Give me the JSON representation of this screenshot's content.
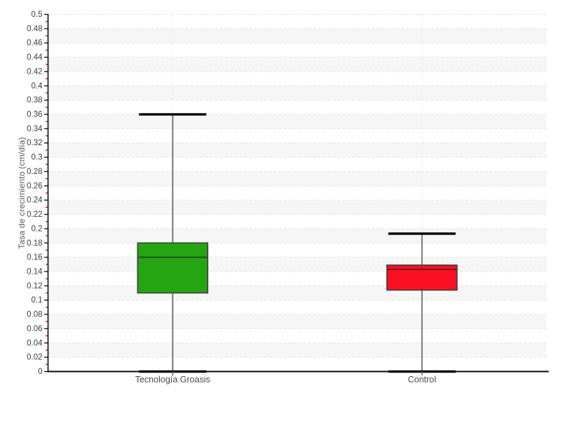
{
  "chart_data": {
    "type": "box",
    "title": "",
    "xlabel": "",
    "ylabel": "Tasa de crecimiento (cm/día)",
    "ylim": [
      0,
      0.5
    ],
    "ytick_step": 0.02,
    "minor_tick_step": 0.01,
    "grid": "horizontal dashed gridlines with alternating shaded bands; vertical dashed line at each category",
    "legend": "none",
    "categories": [
      "Tecnología Groasis",
      "Control"
    ],
    "series": [
      {
        "name": "Tecnología Groasis",
        "min": 0,
        "q1": 0.11,
        "median": 0.16,
        "q3": 0.18,
        "max": 0.36,
        "fill_color": "#26a513",
        "median_color": "#1b5e10"
      },
      {
        "name": "Control",
        "min": 0,
        "q1": 0.114,
        "median": 0.143,
        "q3": 0.149,
        "max": 0.193,
        "fill_color": "#fb0f22",
        "median_color": "#7a0d18"
      }
    ]
  },
  "colors": {
    "band_shade": "#f6f6f7",
    "h_gridline": "#e2e2e2",
    "v_gridline": "#e6e6e6",
    "axis_line": "#0a0a0a",
    "major_tick": "#1a1a1a",
    "minor_tick": "#e00000",
    "whisker_line": "#787878",
    "whisker_cap": "#0a0a0a",
    "box_border": "#3f3f3f",
    "y_tick_label": "#3c3c3c",
    "x_tick_label": "#4c4c4c",
    "x_category_tick": "#6a6a6a"
  }
}
